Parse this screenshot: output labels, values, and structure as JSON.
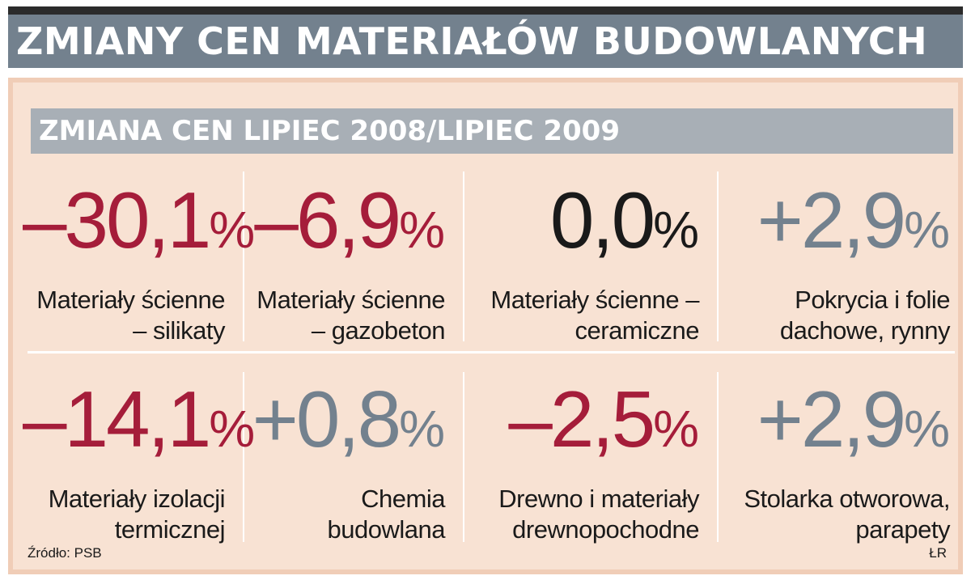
{
  "title": "ZMIANY CEN MATERIAŁÓW BUDOWLANYCH",
  "subtitle": "ZMIANA CEN LIPIEC 2008/LIPIEC 2009",
  "colors": {
    "negative": "#a51d3a",
    "positive": "#73818e",
    "neutral": "#1a1a1a"
  },
  "chart_data": {
    "type": "table",
    "title": "ZMIANY CEN MATERIAŁÓW BUDOWLANYCH",
    "subtitle": "ZMIANA CEN LIPIEC 2008/LIPIEC 2009",
    "unit": "%",
    "items": [
      {
        "value_text": "–30,1",
        "value": -30.1,
        "sign": "negative",
        "label": "Materiały ścienne – silikaty"
      },
      {
        "value_text": "–6,9",
        "value": -6.9,
        "sign": "negative",
        "label": "Materiały ścienne – gazobeton"
      },
      {
        "value_text": "0,0",
        "value": 0.0,
        "sign": "neutral",
        "label": "Materiały ścienne – ceramiczne"
      },
      {
        "value_text": "+2,9",
        "value": 2.9,
        "sign": "positive",
        "label": "Pokrycia i folie dachowe, rynny"
      },
      {
        "value_text": "–14,1",
        "value": -14.1,
        "sign": "negative",
        "label": "Materiały izolacji termicznej"
      },
      {
        "value_text": "+0,8",
        "value": 0.8,
        "sign": "positive",
        "label": "Chemia budowlana"
      },
      {
        "value_text": "–2,5",
        "value": -2.5,
        "sign": "negative",
        "label": "Drewno i materiały drewnopochodne"
      },
      {
        "value_text": "+2,9",
        "value": 2.9,
        "sign": "positive",
        "label": "Stolarka otworowa, parapety"
      }
    ]
  },
  "footer": {
    "source": "Źródło: PSB",
    "author": "ŁR"
  }
}
